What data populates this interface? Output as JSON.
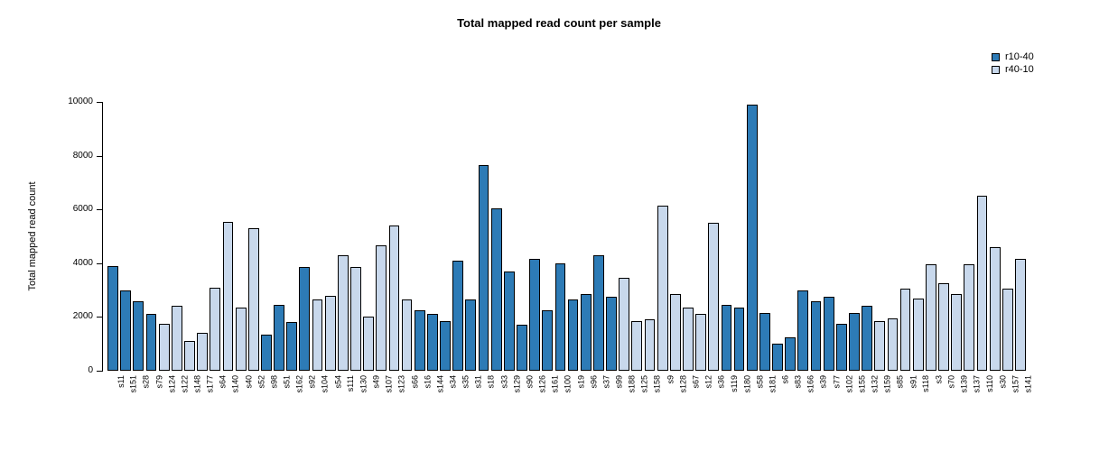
{
  "chart_data": {
    "type": "bar",
    "title": "Total mapped read count per sample",
    "xlabel": "",
    "ylabel": "Total mapped read count",
    "ylim": [
      0,
      10000
    ],
    "yticks": [
      0,
      2000,
      4000,
      6000,
      8000,
      10000
    ],
    "grid": false,
    "legend_position": "top-right",
    "bar_border_color": "#000000",
    "series_colors": {
      "r10-40": "#2d7bb6",
      "r40-10": "#c8d8ec"
    },
    "legend": [
      {
        "label": "r10-40",
        "color": "#2d7bb6"
      },
      {
        "label": "r40-10",
        "color": "#c8d8ec"
      }
    ],
    "categories": [
      "s11",
      "s151",
      "s28",
      "s79",
      "s124",
      "s122",
      "s148",
      "s177",
      "s64",
      "s140",
      "s40",
      "s52",
      "s98",
      "s51",
      "s162",
      "s92",
      "s104",
      "s54",
      "s111",
      "s130",
      "s49",
      "s107",
      "s123",
      "s66",
      "s16",
      "s144",
      "s34",
      "s35",
      "s31",
      "s18",
      "s33",
      "s129",
      "s90",
      "s126",
      "s161",
      "s100",
      "s19",
      "s96",
      "s37",
      "s99",
      "s188",
      "s125",
      "s158",
      "s9",
      "s128",
      "s67",
      "s12",
      "s36",
      "s119",
      "s180",
      "s58",
      "s181",
      "s6",
      "s83",
      "s166",
      "s39",
      "s77",
      "s102",
      "s155",
      "s132",
      "s159",
      "s85",
      "s91",
      "s118",
      "s3",
      "s70",
      "s139",
      "s137",
      "s110",
      "s30",
      "s157",
      "s141"
    ],
    "groups": [
      "r10-40",
      "r10-40",
      "r10-40",
      "r10-40",
      "r40-10",
      "r40-10",
      "r40-10",
      "r40-10",
      "r40-10",
      "r40-10",
      "r40-10",
      "r40-10",
      "r10-40",
      "r10-40",
      "r10-40",
      "r10-40",
      "r40-10",
      "r40-10",
      "r40-10",
      "r40-10",
      "r40-10",
      "r40-10",
      "r40-10",
      "r40-10",
      "r10-40",
      "r10-40",
      "r10-40",
      "r10-40",
      "r10-40",
      "r10-40",
      "r10-40",
      "r10-40",
      "r10-40",
      "r10-40",
      "r10-40",
      "r10-40",
      "r10-40",
      "r10-40",
      "r10-40",
      "r10-40",
      "r40-10",
      "r40-10",
      "r40-10",
      "r40-10",
      "r40-10",
      "r40-10",
      "r40-10",
      "r40-10",
      "r10-40",
      "r10-40",
      "r10-40",
      "r10-40",
      "r10-40",
      "r10-40",
      "r10-40",
      "r10-40",
      "r10-40",
      "r10-40",
      "r10-40",
      "r10-40",
      "r40-10",
      "r40-10",
      "r40-10",
      "r40-10",
      "r40-10",
      "r40-10",
      "r40-10",
      "r40-10",
      "r40-10",
      "r40-10",
      "r40-10",
      "r40-10"
    ],
    "values": [
      3900,
      3000,
      2600,
      2100,
      1750,
      2400,
      1100,
      1400,
      3100,
      5550,
      2350,
      5300,
      1350,
      2450,
      1800,
      3850,
      2650,
      2800,
      4300,
      3850,
      2000,
      4650,
      5400,
      2650,
      2250,
      2100,
      1850,
      4100,
      2650,
      7650,
      6050,
      3700,
      1700,
      4150,
      2250,
      4000,
      2650,
      2850,
      4300,
      2750,
      3450,
      1850,
      1900,
      6150,
      2850,
      2350,
      2100,
      5500,
      2450,
      2350,
      9900,
      2150,
      1000,
      1250,
      3000,
      2600,
      2750,
      1750,
      2150,
      2400,
      1850,
      1950,
      3050,
      2700,
      3950,
      3250,
      2850,
      3950,
      6500,
      4600,
      3050,
      4150
    ]
  }
}
